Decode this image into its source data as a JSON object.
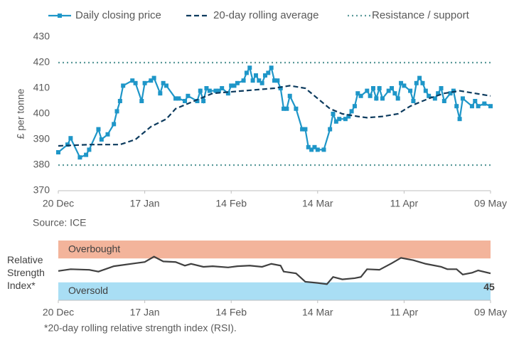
{
  "chart_data": [
    {
      "type": "line",
      "ylabel": "£ per tonne",
      "source": "Source: ICE",
      "ylim": [
        370,
        430
      ],
      "yticks": [
        370,
        380,
        390,
        400,
        410,
        420,
        430
      ],
      "xlim": [
        0,
        140
      ],
      "xticks": [
        {
          "value": 0,
          "label": "20 Dec"
        },
        {
          "value": 28,
          "label": "17 Jan"
        },
        {
          "value": 56,
          "label": "14 Feb"
        },
        {
          "value": 84,
          "label": "14 Mar"
        },
        {
          "value": 112,
          "label": "11 Apr"
        },
        {
          "value": 140,
          "label": "09 May"
        }
      ],
      "series": [
        {
          "name": "Daily closing price",
          "color": "#1e96c8",
          "style": "markers",
          "x": [
            0,
            3,
            4,
            7,
            9,
            10,
            13,
            14,
            16,
            18,
            19,
            20,
            21,
            24,
            25,
            27,
            28,
            30,
            31,
            33,
            34,
            35,
            38,
            39,
            41,
            42,
            45,
            46,
            47,
            48,
            49,
            51,
            52,
            53,
            55,
            56,
            57,
            58,
            60,
            61,
            62,
            63,
            64,
            65,
            66,
            67,
            68,
            69,
            70,
            71,
            72,
            73,
            74,
            75,
            77,
            79,
            80,
            81,
            82,
            83,
            84,
            86,
            88,
            89,
            90,
            91,
            93,
            94,
            95,
            96,
            97,
            98,
            100,
            101,
            102,
            103,
            104,
            105,
            107,
            108,
            109,
            110,
            111,
            112,
            114,
            115,
            116,
            117,
            118,
            119,
            120,
            122,
            123,
            124,
            125,
            127,
            128,
            129,
            130,
            131,
            134,
            135,
            136,
            138,
            140
          ],
          "values": [
            385,
            388,
            390.5,
            383,
            384,
            386,
            394,
            390,
            392,
            396,
            401,
            405,
            411,
            413,
            412,
            405,
            412,
            413,
            414,
            408,
            412,
            411,
            406,
            406,
            405,
            407,
            405,
            409,
            405,
            410,
            409,
            409,
            409,
            410,
            408,
            411,
            411,
            412,
            413,
            416,
            418,
            413,
            415,
            413,
            412,
            415,
            416,
            418,
            413,
            413,
            410,
            402,
            402,
            407,
            402,
            394,
            394,
            387,
            386,
            387,
            386,
            386,
            394,
            400,
            397,
            398,
            398,
            399,
            401,
            403,
            408,
            407,
            409,
            407,
            410,
            406,
            410,
            406,
            409,
            410,
            408,
            406,
            412,
            411,
            409,
            405,
            412,
            414,
            412,
            409,
            407,
            406,
            408,
            410,
            405,
            408,
            409,
            403,
            398,
            406,
            403,
            405,
            403,
            404,
            403
          ]
        },
        {
          "name": "20-day rolling average",
          "color": "#0d3b5e",
          "style": "dashed",
          "x": [
            0,
            10,
            20,
            25,
            30,
            35,
            38,
            42,
            46,
            50,
            60,
            70,
            75,
            80,
            85,
            88,
            92,
            97,
            100,
            105,
            110,
            114,
            120,
            125,
            130,
            135,
            140
          ],
          "values": [
            387.5,
            388,
            388,
            390,
            395,
            398,
            402,
            404,
            406,
            408,
            409,
            410,
            411,
            410,
            405,
            402,
            400,
            399,
            398.5,
            399,
            400,
            403,
            406,
            408,
            409,
            408,
            407
          ]
        },
        {
          "name": "Resistance / support",
          "color": "#5b9a9a",
          "style": "hlines",
          "values": [
            420,
            380
          ]
        }
      ]
    },
    {
      "type": "line",
      "ylabel": "Relative Strength Index*",
      "footnote": "*20-day rolling relative strength index (RSI).",
      "ylim": [
        0,
        100
      ],
      "xlim": [
        0,
        140
      ],
      "xticks": [
        {
          "value": 0,
          "label": "20 Dec"
        },
        {
          "value": 28,
          "label": "17 Jan"
        },
        {
          "value": 56,
          "label": "14 Feb"
        },
        {
          "value": 84,
          "label": "14 Mar"
        },
        {
          "value": 112,
          "label": "11 Apr"
        },
        {
          "value": 140,
          "label": "09 May"
        }
      ],
      "bands": [
        {
          "label": "Overbought",
          "range": [
            70,
            100
          ],
          "color": "#f3b49b"
        },
        {
          "label": "Oversold",
          "range": [
            0,
            30
          ],
          "color": "#a9def4"
        }
      ],
      "series": [
        {
          "color": "#404040",
          "x": [
            0,
            4,
            10,
            13,
            18,
            25,
            28,
            31,
            34,
            38,
            41,
            43,
            47,
            50,
            55,
            58,
            62,
            66,
            69,
            72,
            73,
            77,
            80,
            84,
            87,
            89,
            92,
            96,
            98,
            100,
            104,
            108,
            111,
            115,
            119,
            124,
            126,
            129,
            131,
            134,
            136,
            140
          ],
          "values": [
            49,
            52,
            51,
            48,
            57,
            62,
            64,
            73,
            65,
            64,
            58,
            61,
            56,
            57,
            55,
            57,
            58,
            56,
            61,
            58,
            48,
            45,
            31,
            29,
            27,
            39,
            35,
            37,
            39,
            52,
            51,
            62,
            71,
            67,
            61,
            56,
            52,
            52,
            43,
            46,
            50,
            45
          ]
        }
      ]
    }
  ]
}
